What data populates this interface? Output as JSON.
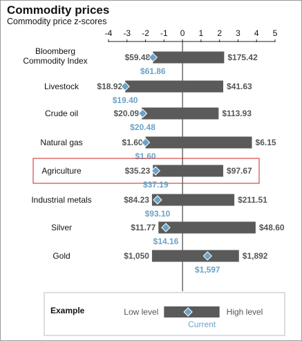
{
  "title": "Commodity prices",
  "subtitle": "Commodity price z-scores",
  "colors": {
    "bar": "#5a5a5a",
    "current": "#6aa3c7",
    "highlight": "#cc2222",
    "legend_border": "#dddddd",
    "axis": "#222222"
  },
  "chart_data": {
    "type": "range-bar",
    "x_axis": {
      "range": [
        -4,
        5
      ],
      "ticks": [
        -4,
        -3,
        -2,
        -1,
        0,
        1,
        2,
        3,
        4,
        5
      ]
    },
    "series": [
      {
        "category": "Bloomberg\nCommodity Index",
        "low_z": -1.6,
        "high_z": 2.25,
        "current_z": -1.6,
        "low_label": "$59.48",
        "high_label": "$175.42",
        "current_label": "$61.86",
        "highlighted": false
      },
      {
        "category": "Livestock",
        "low_z": -3.1,
        "high_z": 2.2,
        "current_z": -3.1,
        "low_label": "$18.92",
        "high_label": "$41.63",
        "current_label": "$19.40",
        "highlighted": false
      },
      {
        "category": "Crude oil",
        "low_z": -2.2,
        "high_z": 1.95,
        "current_z": -2.15,
        "low_label": "$20.09",
        "high_label": "$113.93",
        "current_label": "$20.48",
        "highlighted": false
      },
      {
        "category": "Natural gas",
        "low_z": -2.0,
        "high_z": 3.75,
        "current_z": -2.0,
        "low_label": "$1.60",
        "high_label": "$6.15",
        "current_label": "$1.60",
        "highlighted": false
      },
      {
        "category": "Agriculture",
        "low_z": -1.6,
        "high_z": 2.2,
        "current_z": -1.45,
        "low_label": "$35.23",
        "high_label": "$97.67",
        "current_label": "$37.19",
        "highlighted": true
      },
      {
        "category": "Industrial metals",
        "low_z": -1.65,
        "high_z": 2.8,
        "current_z": -1.35,
        "low_label": "$84.23",
        "high_label": "$211.51",
        "current_label": "$93.10",
        "highlighted": false
      },
      {
        "category": "Silver",
        "low_z": -1.3,
        "high_z": 3.95,
        "current_z": -0.9,
        "low_label": "$11.77",
        "high_label": "$48.60",
        "current_label": "$14.16",
        "highlighted": false
      },
      {
        "category": "Gold",
        "low_z": -1.65,
        "high_z": 3.05,
        "current_z": 1.35,
        "low_label": "$1,050",
        "high_label": "$1,892",
        "current_label": "$1,597",
        "highlighted": false
      }
    ],
    "example": {
      "title": "Example",
      "low": "Low level",
      "high": "High level",
      "current": "Current",
      "low_z": -1.0,
      "high_z": 2.0,
      "current_z": 0.3
    }
  }
}
